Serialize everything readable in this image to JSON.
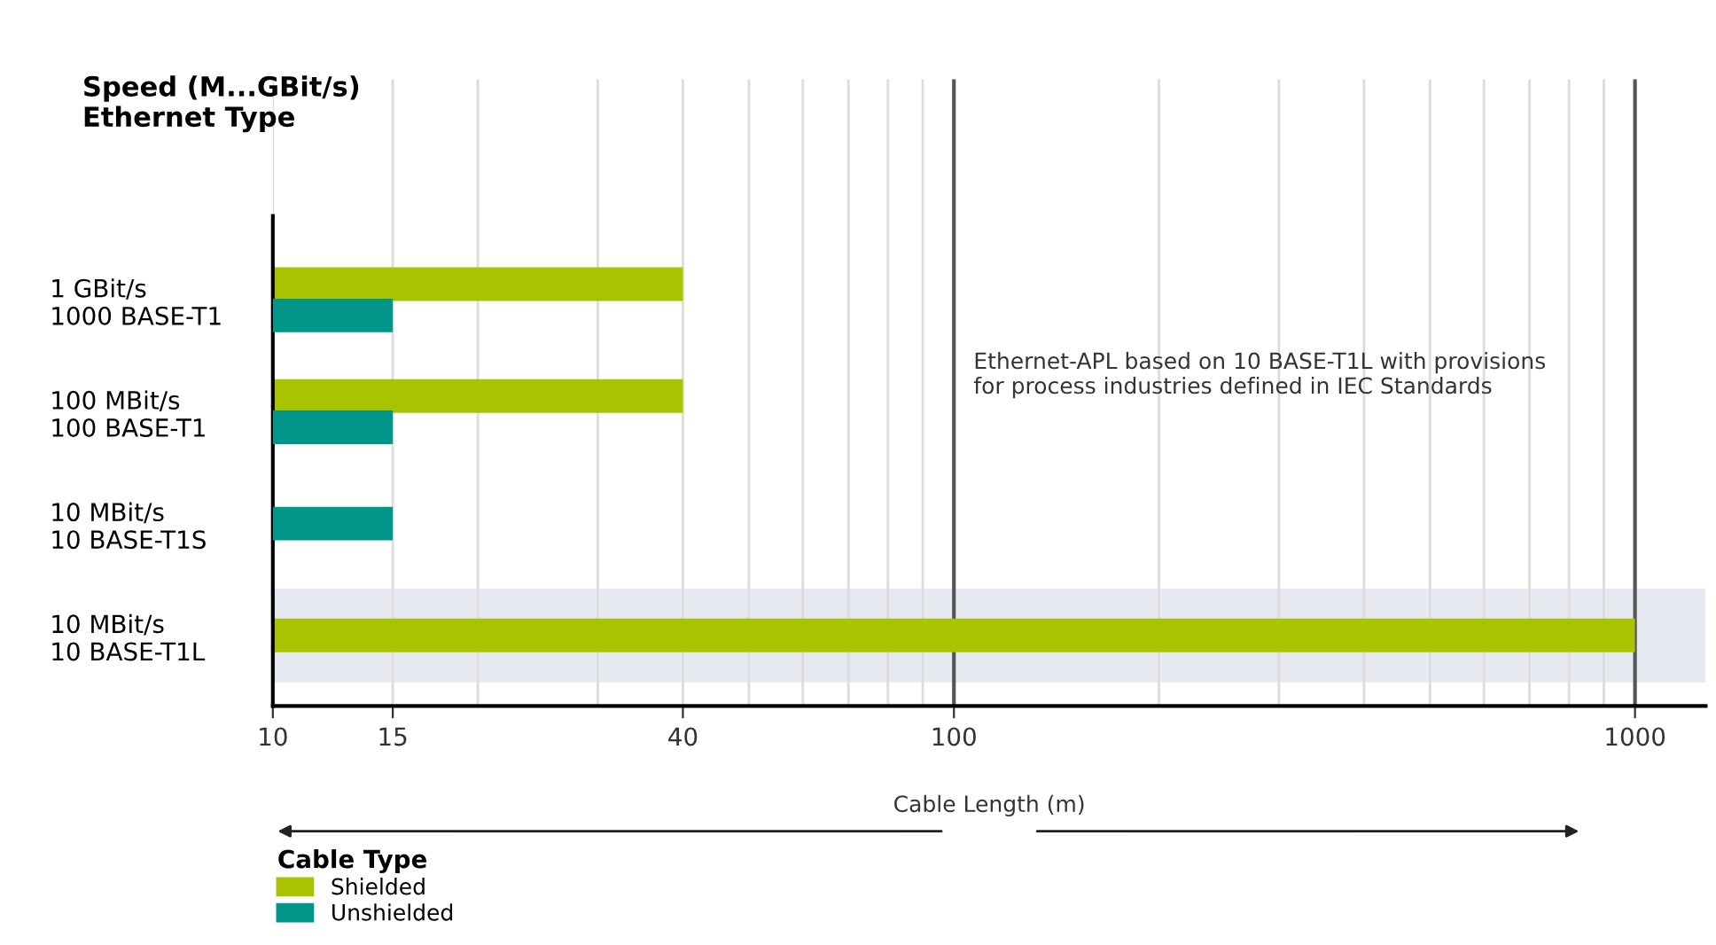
{
  "chart_data": {
    "type": "bar",
    "orientation": "horizontal",
    "log": "x",
    "ylabel": "Speed (M...GBit/s)\nEthernet Type",
    "xlabel": "Cable Length (m)",
    "legend_title": "Cable Type",
    "categories": [
      "1 GBit/s\n1000 BASE-T1",
      "100 MBit/s\n100 BASE-T1",
      "10 MBit/s\n10 BASE-T1S",
      "10 MBit/s\n10 BASE-T1L"
    ],
    "series": [
      {
        "name": "Shielded",
        "color": "#a8c400",
        "values": [
          40,
          40,
          null,
          1000
        ]
      },
      {
        "name": "Unshielded",
        "color": "#00968a",
        "values": [
          15,
          15,
          15,
          null
        ]
      }
    ],
    "xlim": [
      10,
      1270
    ],
    "xticks": [
      10,
      15,
      40,
      100,
      1000
    ],
    "grid": "x",
    "legend": "bottom left",
    "bands": [
      {
        "axis": "y",
        "from": "10 MBit/s\n10 BASE-T1L",
        "to": "10 MBit/s\n10 BASE-T1L",
        "color": "#e6eaf0"
      }
    ],
    "annotations": [
      "Ethernet-APL based on 10 BASE-T1L with provisions\nfor process industries defined in IEC Standards"
    ]
  }
}
